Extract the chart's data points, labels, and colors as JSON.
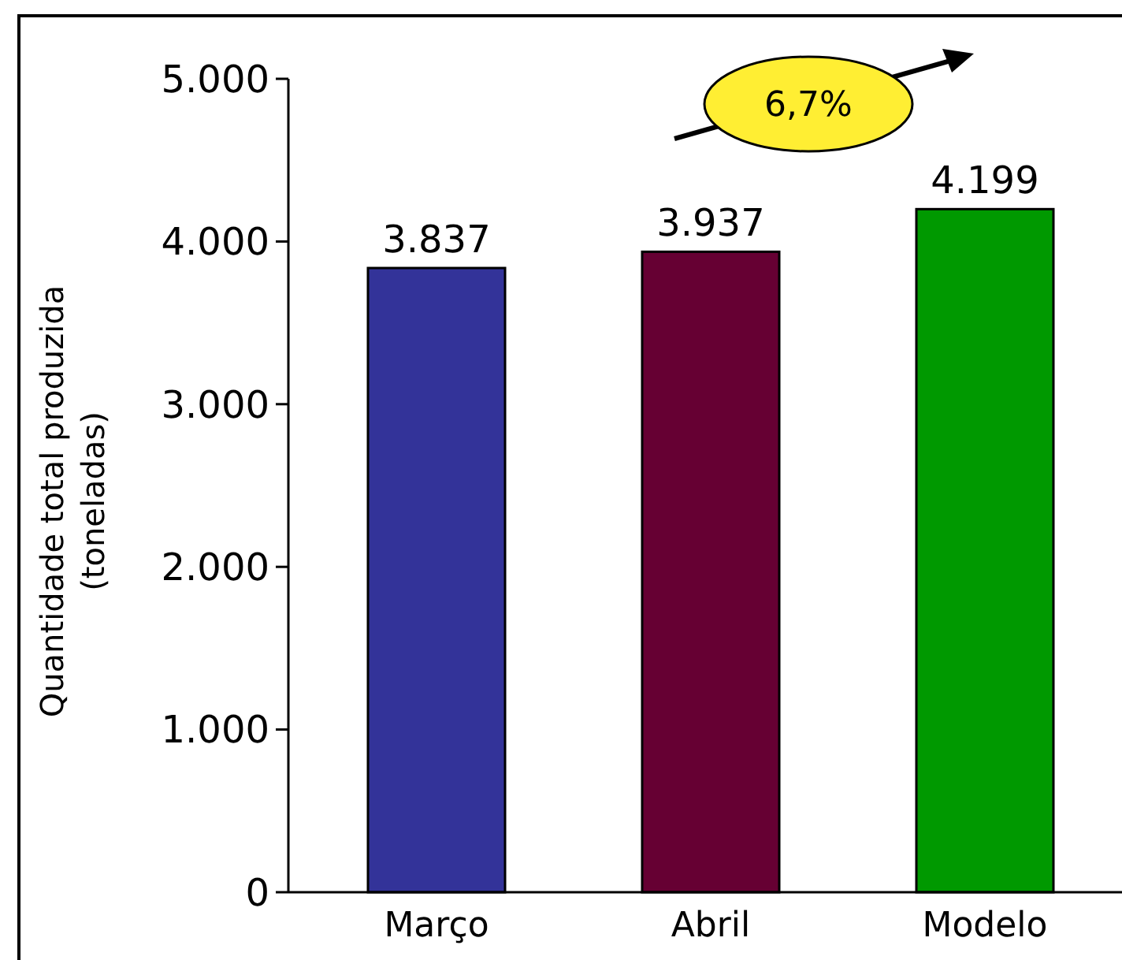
{
  "chart_data": {
    "type": "bar",
    "ylabel": "Quantidade total produzida\n(toneladas)",
    "categories": [
      "Março",
      "Abril",
      "Modelo"
    ],
    "values": [
      3837,
      3937,
      4199
    ],
    "colors": [
      "#333399",
      "#660033",
      "#009900"
    ],
    "value_labels": [
      "3.837",
      "3.937",
      "4.199"
    ],
    "ylim": [
      0,
      5000
    ],
    "yticks": [
      0,
      {
        "value": 1000,
        "label": "1.000"
      },
      {
        "value": 2000,
        "label": "2.000"
      },
      {
        "value": 3000,
        "label": "3.000"
      },
      {
        "value": 4000,
        "label": "4.000"
      },
      {
        "value": 5000,
        "label": "5.000"
      }
    ],
    "annotations": [
      "6,7%"
    ],
    "grid": false
  }
}
